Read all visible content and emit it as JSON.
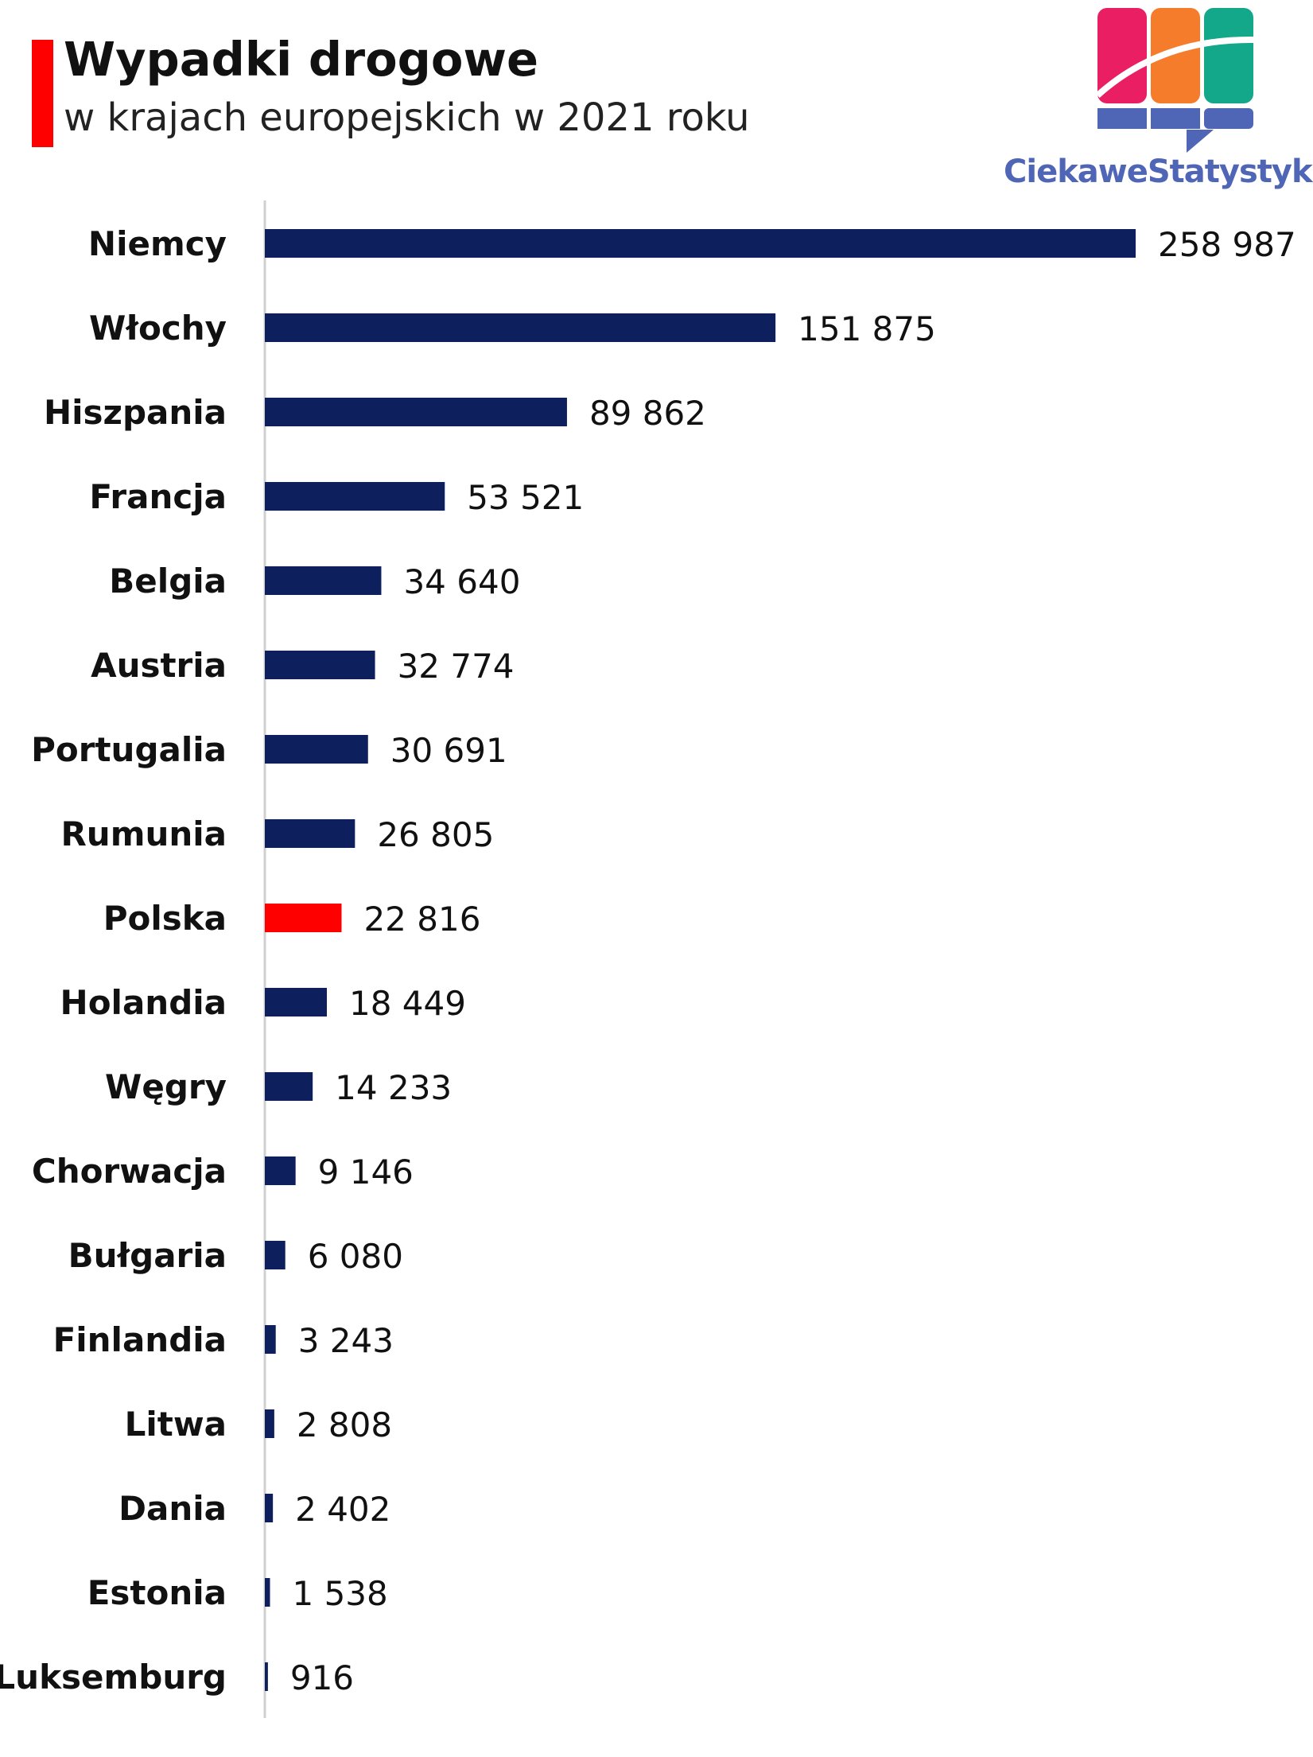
{
  "title": "Wypadki drogowe",
  "subtitle": "w krajach europejskich w 2021 roku",
  "brand": "CiekaweStatystyki.pl",
  "colors": {
    "bar": "#0d1f5c",
    "highlight": "#ff0000",
    "accent_bar": "#ff0000",
    "axis": "#d0d0d0",
    "logo_pink": "#e91e63",
    "logo_orange": "#f57c2b",
    "logo_teal": "#14a88a",
    "logo_blue": "#4f65b6"
  },
  "chart_data": {
    "type": "bar",
    "orientation": "horizontal",
    "title": "Wypadki drogowe",
    "subtitle": "w krajach europejskich w 2021 roku",
    "categories": [
      "Niemcy",
      "Włochy",
      "Hiszpania",
      "Francja",
      "Belgia",
      "Austria",
      "Portugalia",
      "Rumunia",
      "Polska",
      "Holandia",
      "Węgry",
      "Chorwacja",
      "Bułgaria",
      "Finlandia",
      "Litwa",
      "Dania",
      "Estonia",
      "Luksemburg"
    ],
    "values": [
      258987,
      151875,
      89862,
      53521,
      34640,
      32774,
      30691,
      26805,
      22816,
      18449,
      14233,
      9146,
      6080,
      3243,
      2808,
      2402,
      1538,
      916
    ],
    "value_labels": [
      "258 987",
      "151 875",
      "89 862",
      "53 521",
      "34 640",
      "32 774",
      "30 691",
      "26 805",
      "22 816",
      "18 449",
      "14 233",
      "9 146",
      "6 080",
      "3 243",
      "2 808",
      "2 402",
      "1 538",
      "916"
    ],
    "highlight": "Polska",
    "xlim": [
      0,
      258987
    ],
    "grid": false,
    "legend": "none"
  }
}
